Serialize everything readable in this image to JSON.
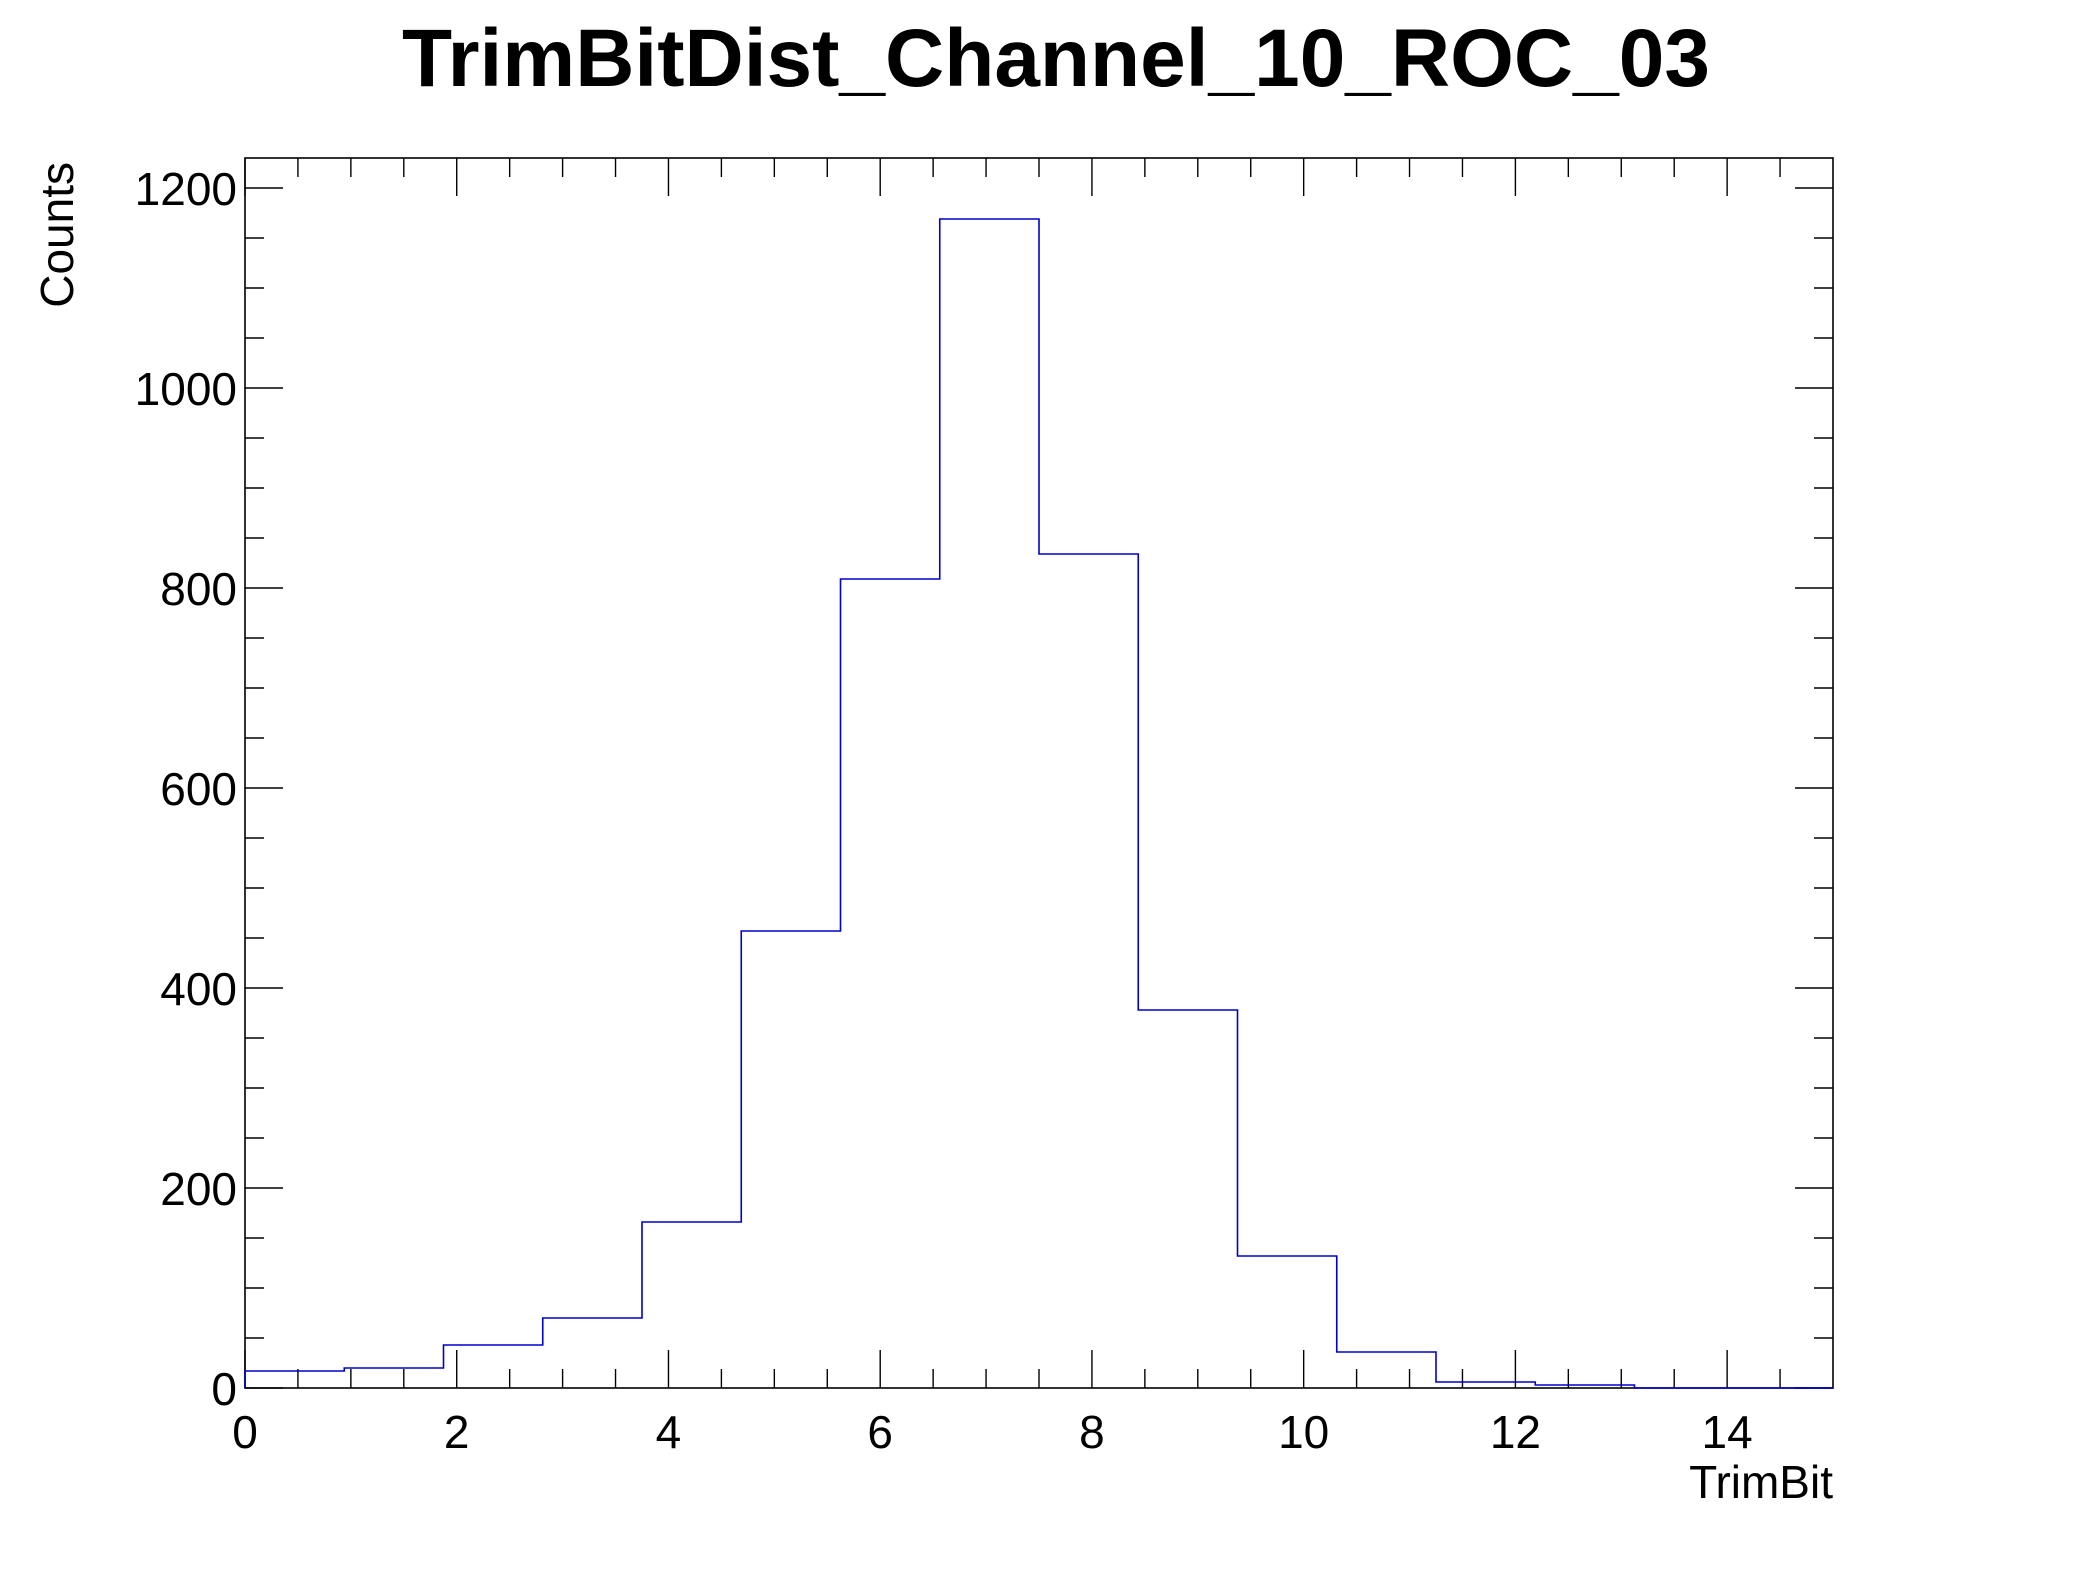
{
  "chart_data": {
    "type": "bar",
    "title": "TrimBitDist_Channel_10_ROC_03",
    "xlabel": "TrimBit",
    "ylabel": "Counts",
    "xlim": [
      0,
      15
    ],
    "ylim": [
      0,
      1230
    ],
    "grid": false,
    "legend": "none",
    "line_color": "#0000cc",
    "bin_edges": [
      0,
      0.9375,
      1.875,
      2.8125,
      3.75,
      4.6875,
      5.625,
      6.5625,
      7.5,
      8.4375,
      9.375,
      10.3125,
      11.25,
      12.1875,
      13.125,
      14.0625,
      15
    ],
    "values": [
      17,
      20,
      43,
      70,
      166,
      457,
      809,
      1169,
      834,
      378,
      132,
      36,
      6,
      3,
      0,
      0
    ],
    "xticks": [
      {
        "value": 0,
        "label": "0"
      },
      {
        "value": 2,
        "label": "2"
      },
      {
        "value": 4,
        "label": "4"
      },
      {
        "value": 6,
        "label": "6"
      },
      {
        "value": 8,
        "label": "8"
      },
      {
        "value": 10,
        "label": "10"
      },
      {
        "value": 12,
        "label": "12"
      },
      {
        "value": 14,
        "label": "14"
      }
    ],
    "yticks": [
      {
        "value": 0,
        "label": "0"
      },
      {
        "value": 200,
        "label": "200"
      },
      {
        "value": 400,
        "label": "400"
      },
      {
        "value": 600,
        "label": "600"
      },
      {
        "value": 800,
        "label": "800"
      },
      {
        "value": 1000,
        "label": "1000"
      },
      {
        "value": 1200,
        "label": "1200"
      }
    ]
  }
}
